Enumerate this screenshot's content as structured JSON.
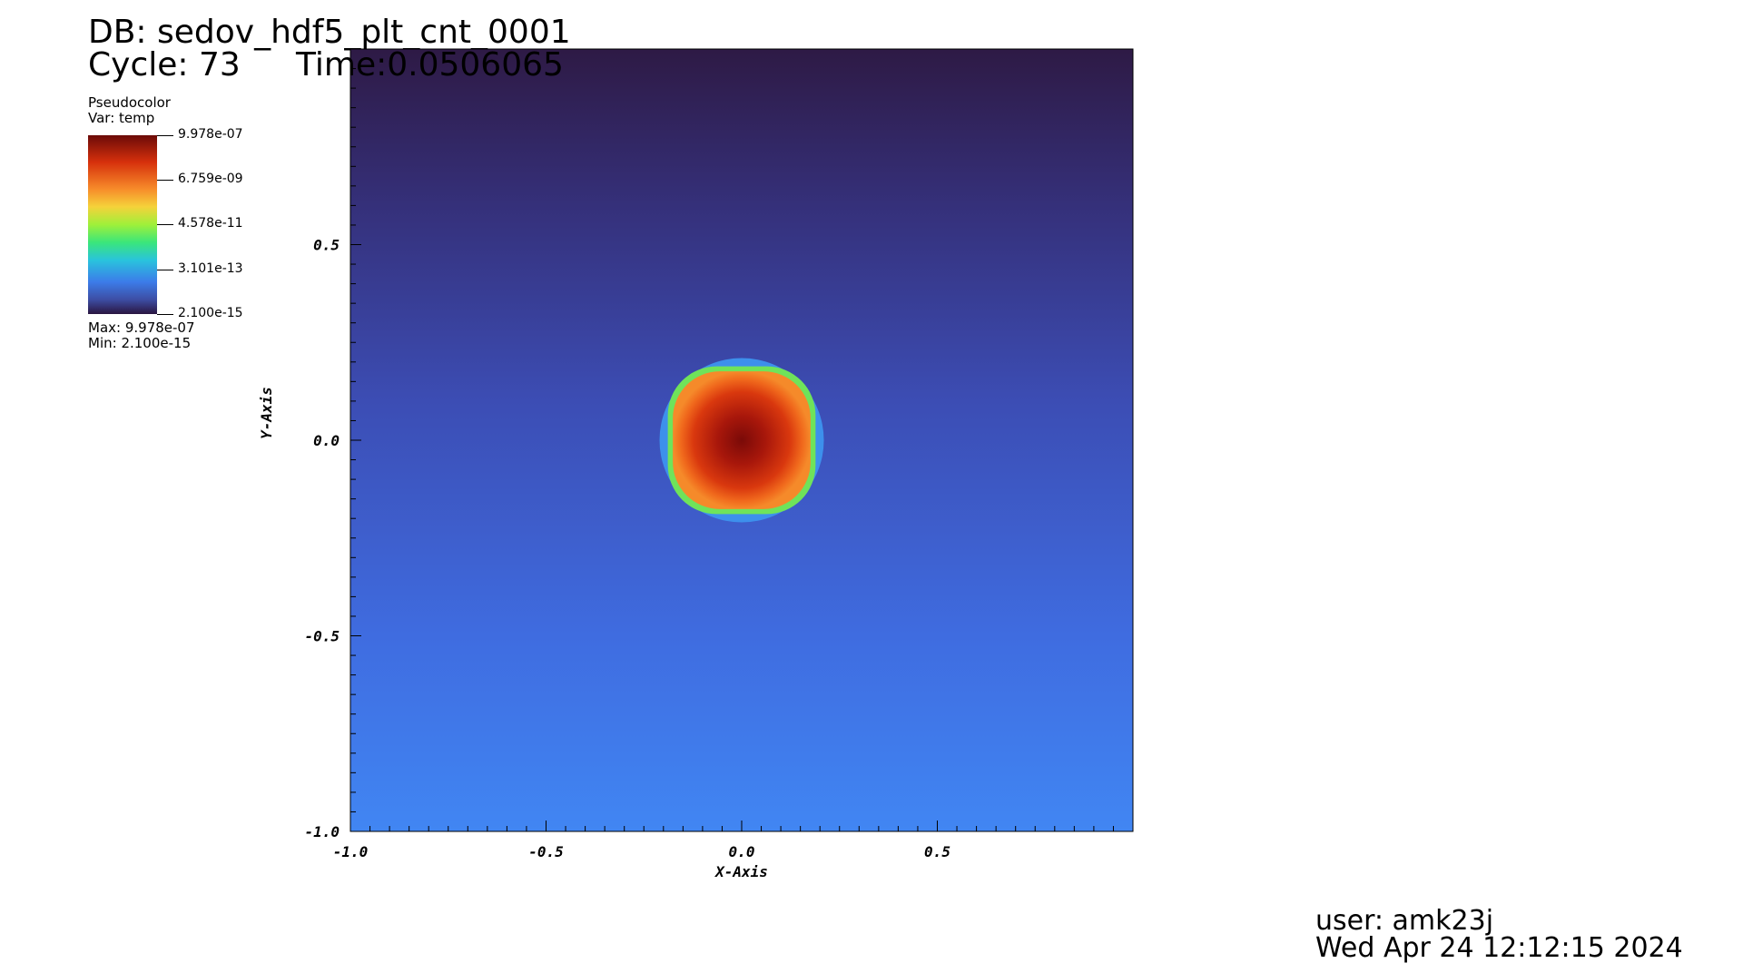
{
  "header": {
    "db_label": "DB: sedov_hdf5_plt_cnt_0001",
    "cycle_label": "Cycle: 73",
    "time_label": "Time:0.0506065"
  },
  "legend": {
    "plot_type": "Pseudocolor",
    "var_label": "Var: temp",
    "max_label": "Max: 9.978e-07",
    "min_label": "Min: 2.100e-15",
    "ticks": [
      "9.978e-07",
      "6.759e-09",
      "4.578e-11",
      "3.101e-13",
      "2.100e-15"
    ]
  },
  "footer": {
    "user": "user: amk23j",
    "date": "Wed Apr 24 12:12:15 2024"
  },
  "colors": {
    "background_top": "#2e1a45",
    "background_bottom": "#4186f3",
    "blast_ring": "#3d90ec",
    "blast_core": "#8a0f0a"
  },
  "chart_data": {
    "type": "heatmap",
    "variable": "temp",
    "xlabel": "X-Axis",
    "ylabel": "Y-Axis",
    "xlim": [
      -1.0,
      1.0
    ],
    "ylim": [
      -1.0,
      1.0
    ],
    "x_ticks": [
      -1.0,
      -0.5,
      0.0,
      0.5
    ],
    "y_ticks": [
      -1.0,
      -0.5,
      0.0,
      0.5
    ],
    "x_tick_labels": [
      "-1.0",
      "-0.5",
      "0.0",
      "0.5"
    ],
    "y_tick_labels": [
      "-1.0",
      "-0.5",
      "0.0",
      "0.5"
    ],
    "value_range": [
      2.1e-15,
      9.978e-07
    ],
    "log_scale": true,
    "colormap": "hot_desaturated",
    "feature": {
      "name": "blast-wave",
      "center": [
        0.0,
        0.0
      ],
      "shock_radius": 0.21,
      "core_radius": 0.16
    },
    "legend_position": "top-left",
    "grid": false
  }
}
